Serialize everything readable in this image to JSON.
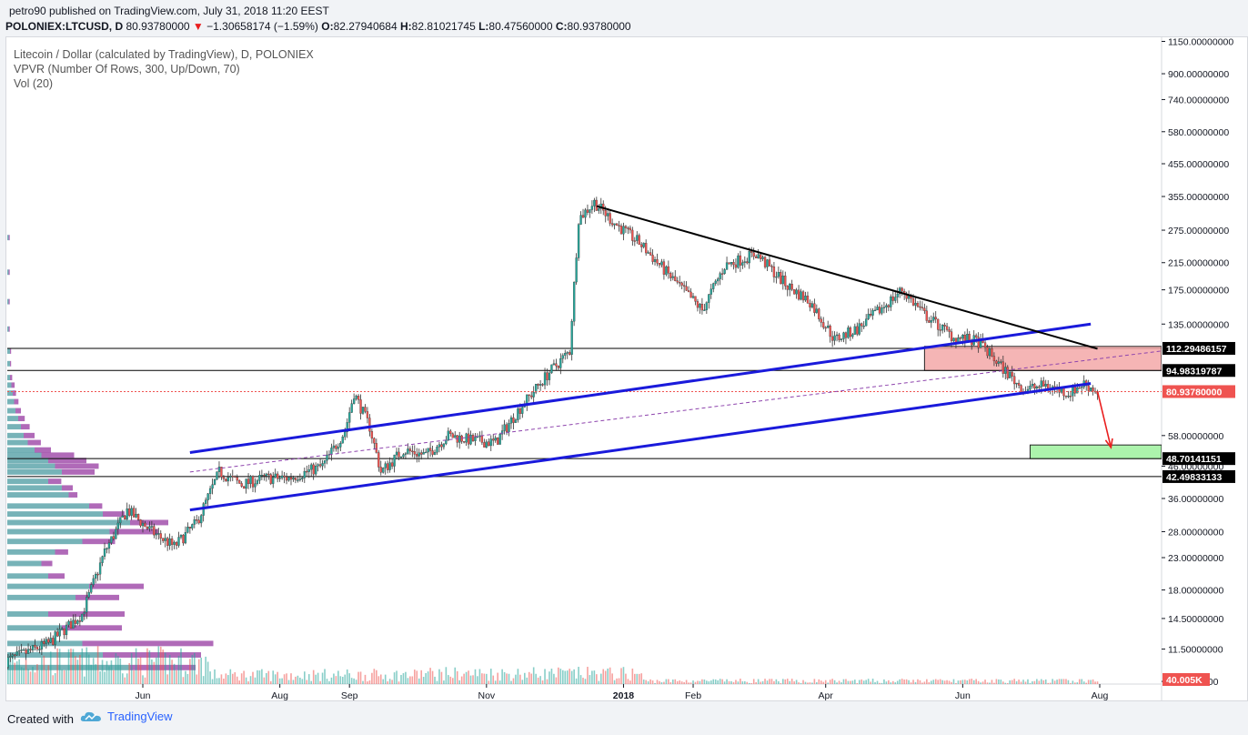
{
  "publish": {
    "author": "petro90",
    "text": "published on TradingView.com, July 31, 2018 11:20 EEST"
  },
  "ohlc": {
    "symbol": "POLONIEX:LTCUSD, D",
    "last": "80.93780000",
    "change": "−1.30658174 (−1.59%)",
    "o_label": "O:",
    "o": "82.27940684",
    "h_label": "H:",
    "h": "82.81021745",
    "l_label": "L:",
    "l": "80.47560000",
    "c_label": "C:",
    "c": "80.93780000"
  },
  "legend": {
    "title": "Litecoin / Dollar (calculated by TradingView), D, POLONIEX",
    "vpvr": "VPVR (Number Of Rows, 300, Up/Down, 70)",
    "vol": "Vol (20)"
  },
  "footer": {
    "created": "Created with",
    "brand": "TradingView",
    "logo_icon": "tradingview-cloud-icon"
  },
  "colors": {
    "up": "#26a69a",
    "down": "#ef5350",
    "channel": "#1a1adb",
    "resistance": "#000000",
    "resistance_zone": "#f4a9a9",
    "target_zone": "#9ef29e",
    "arrow": "#e91e1e",
    "vpvr_up": "#4a9aa0",
    "vpvr_down": "#8e2b9a"
  },
  "chart_data": {
    "type": "candlestick",
    "scale": "log",
    "ylim": [
      8.8,
      1200
    ],
    "y_ticks": [
      "1150.00000000",
      "900.00000000",
      "740.00000000",
      "580.00000000",
      "455.00000000",
      "355.00000000",
      "275.00000000",
      "215.00000000",
      "175.00000000",
      "135.00000000",
      "58.00000000",
      "46.00000000",
      "36.00000000",
      "28.00000000",
      "23.00000000",
      "18.00000000",
      "14.50000000",
      "11.50000000",
      "9.00000000"
    ],
    "y_tick_values": [
      1150,
      900,
      740,
      580,
      455,
      355,
      275,
      215,
      175,
      135,
      58,
      46,
      36,
      28,
      23,
      18,
      14.5,
      11.5,
      9
    ],
    "x_labels": [
      "Jun",
      "Aug",
      "Sep",
      "Nov",
      "2018",
      "Feb",
      "Apr",
      "Jun",
      "Aug"
    ],
    "x_dates": [
      "2017-06-01",
      "2017-08-01",
      "2017-09-01",
      "2017-11-01",
      "2018-01-01",
      "2018-02-01",
      "2018-04-01",
      "2018-06-01",
      "2018-08-01"
    ],
    "price_path": [
      [
        "2017-04-01",
        10.5
      ],
      [
        "2017-04-20",
        12
      ],
      [
        "2017-05-05",
        15
      ],
      [
        "2017-05-15",
        24
      ],
      [
        "2017-05-25",
        33
      ],
      [
        "2017-06-05",
        28
      ],
      [
        "2017-06-15",
        25
      ],
      [
        "2017-06-25",
        30
      ],
      [
        "2017-07-05",
        44
      ],
      [
        "2017-07-15",
        40
      ],
      [
        "2017-07-25",
        42
      ],
      [
        "2017-08-05",
        42
      ],
      [
        "2017-08-20",
        46
      ],
      [
        "2017-08-30",
        60
      ],
      [
        "2017-09-03",
        80
      ],
      [
        "2017-09-10",
        62
      ],
      [
        "2017-09-15",
        44
      ],
      [
        "2017-09-25",
        52
      ],
      [
        "2017-10-05",
        50
      ],
      [
        "2017-10-15",
        58
      ],
      [
        "2017-10-25",
        56
      ],
      [
        "2017-11-05",
        55
      ],
      [
        "2017-11-15",
        70
      ],
      [
        "2017-11-28",
        92
      ],
      [
        "2017-12-08",
        110
      ],
      [
        "2017-12-12",
        300
      ],
      [
        "2017-12-19",
        340
      ],
      [
        "2017-12-28",
        290
      ],
      [
        "2018-01-08",
        250
      ],
      [
        "2018-01-20",
        200
      ],
      [
        "2018-02-05",
        150
      ],
      [
        "2018-02-15",
        210
      ],
      [
        "2018-03-01",
        230
      ],
      [
        "2018-03-15",
        180
      ],
      [
        "2018-03-25",
        160
      ],
      [
        "2018-04-05",
        120
      ],
      [
        "2018-04-15",
        130
      ],
      [
        "2018-04-25",
        150
      ],
      [
        "2018-05-05",
        175
      ],
      [
        "2018-05-15",
        145
      ],
      [
        "2018-05-28",
        122
      ],
      [
        "2018-06-08",
        118
      ],
      [
        "2018-06-18",
        98
      ],
      [
        "2018-06-28",
        82
      ],
      [
        "2018-07-08",
        85
      ],
      [
        "2018-07-18",
        80
      ],
      [
        "2018-07-25",
        86
      ],
      [
        "2018-07-31",
        80.94
      ]
    ],
    "horizontal_levels": [
      {
        "value": 112.29486157,
        "label": "112.29486157"
      },
      {
        "value": 94.98319787,
        "label": "94.98319787"
      },
      {
        "value": 48.70141151,
        "label": "48.70141151"
      },
      {
        "value": 42.49833133,
        "label": "42.49833133"
      }
    ],
    "last_price": {
      "value": 80.9378,
      "label": "80.93780000"
    },
    "volume_label": "40.005K",
    "channel_upper": [
      [
        "2017-06-22",
        51
      ],
      [
        "2018-07-28",
        135
      ]
    ],
    "channel_lower": [
      [
        "2017-06-22",
        33
      ],
      [
        "2018-07-28",
        86
      ]
    ],
    "channel_mid": [
      [
        "2017-06-22",
        44
      ],
      [
        "2018-07-28",
        103
      ]
    ],
    "resistance_line": [
      [
        "2017-12-20",
        330
      ],
      [
        "2018-07-31",
        112
      ]
    ],
    "resistance_zone": {
      "from": "2018-05-15",
      "to": "2018-08-31",
      "low": 95,
      "high": 114
    },
    "target_zone": {
      "from": "2018-07-01",
      "to": "2018-08-31",
      "low": 48.7,
      "high": 54
    },
    "arrow": {
      "from": [
        "2018-07-31",
        81
      ],
      "to": [
        "2018-08-06",
        53
      ]
    }
  }
}
